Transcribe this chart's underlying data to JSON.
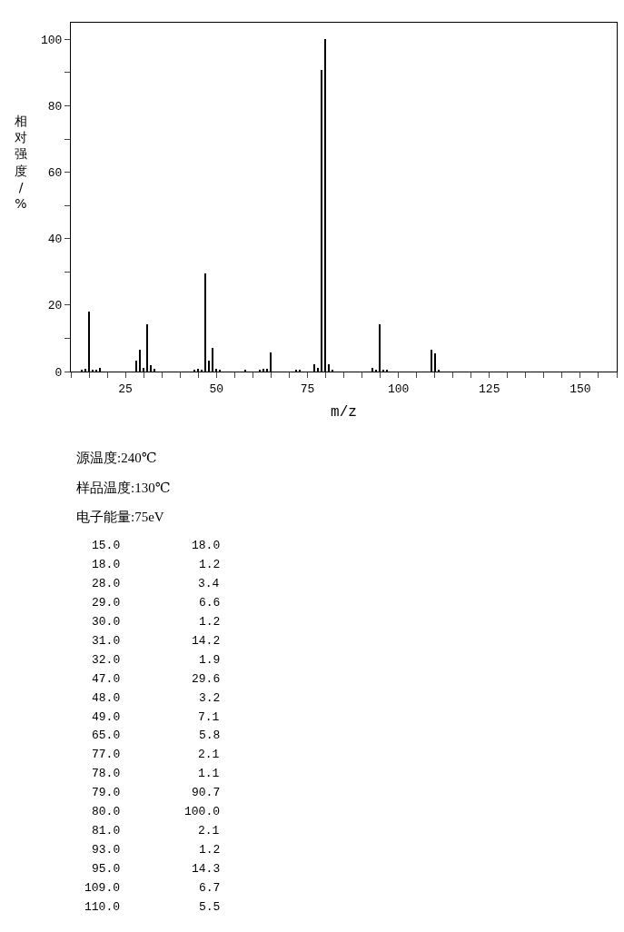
{
  "chart_data": [
    {
      "type": "bar",
      "xlabel": "m/z",
      "ylabel": "相对强度/%",
      "x": [
        13,
        14,
        15,
        16,
        17,
        18,
        28,
        29,
        30,
        31,
        32,
        33,
        44,
        45,
        46,
        47,
        48,
        49,
        50,
        51,
        58,
        62,
        63,
        64,
        65,
        72,
        73,
        77,
        78,
        79,
        80,
        81,
        82,
        93,
        94,
        95,
        96,
        97,
        109,
        110,
        111
      ],
      "values": [
        0.4,
        0.9,
        18.0,
        0.4,
        0.4,
        1.2,
        3.4,
        6.6,
        1.2,
        14.2,
        1.9,
        0.9,
        0.4,
        0.9,
        0.4,
        29.6,
        3.2,
        7.1,
        0.9,
        0.5,
        0.4,
        0.5,
        0.9,
        0.7,
        5.8,
        0.4,
        0.5,
        2.1,
        1.1,
        90.7,
        100.0,
        2.1,
        0.5,
        1.2,
        0.4,
        14.3,
        0.4,
        0.4,
        6.7,
        5.5,
        0.3
      ],
      "color": "#000000",
      "xlim": [
        10,
        160
      ],
      "xticks": [
        {
          "value": 10,
          "label": null
        },
        {
          "value": 15,
          "label": null
        },
        {
          "value": 20,
          "label": null
        },
        25,
        {
          "value": 30,
          "label": null
        },
        {
          "value": 35,
          "label": null
        },
        {
          "value": 40,
          "label": null
        },
        {
          "value": 45,
          "label": null
        },
        50,
        {
          "value": 55,
          "label": null
        },
        {
          "value": 60,
          "label": null
        },
        {
          "value": 65,
          "label": null
        },
        {
          "value": 70,
          "label": null
        },
        75,
        {
          "value": 80,
          "label": null
        },
        {
          "value": 85,
          "label": null
        },
        {
          "value": 90,
          "label": null
        },
        {
          "value": 95,
          "label": null
        },
        100,
        {
          "value": 105,
          "label": null
        },
        {
          "value": 110,
          "label": null
        },
        {
          "value": 115,
          "label": null
        },
        {
          "value": 120,
          "label": null
        },
        125,
        {
          "value": 130,
          "label": null
        },
        {
          "value": 135,
          "label": null
        },
        {
          "value": 140,
          "label": null
        },
        {
          "value": 145,
          "label": null
        },
        150,
        {
          "value": 155,
          "label": null
        },
        {
          "value": 160,
          "label": null
        }
      ],
      "ylim": [
        0,
        105
      ],
      "yticks": [
        0,
        {
          "value": 10,
          "label": null
        },
        20,
        {
          "value": 30,
          "label": null
        },
        40,
        {
          "value": 50,
          "label": null
        },
        60,
        {
          "value": 70,
          "label": null
        },
        80,
        {
          "value": 90,
          "label": null
        },
        100
      ],
      "annotations": [
        "源温度:240℃",
        "样品温度:130℃",
        "电子能量:75eV"
      ]
    },
    {
      "type": "other",
      "annotations": [
        "15.0",
        "18.0",
        "18.0",
        "1.2",
        "28.0",
        "3.4",
        "29.0",
        "6.6",
        "30.0",
        "1.2",
        "31.0",
        "14.2",
        "32.0",
        "1.9",
        "47.0",
        "29.6",
        "48.0",
        "3.2",
        "49.0",
        "7.1",
        "65.0",
        "5.8",
        "77.0",
        "2.1",
        "78.0",
        "1.1",
        "79.0",
        "90.7",
        "80.0",
        "100.0",
        "81.0",
        "2.1",
        "93.0",
        "1.2",
        "95.0",
        "14.3",
        "109.0",
        "6.7",
        "110.0",
        "5.5"
      ]
    }
  ]
}
